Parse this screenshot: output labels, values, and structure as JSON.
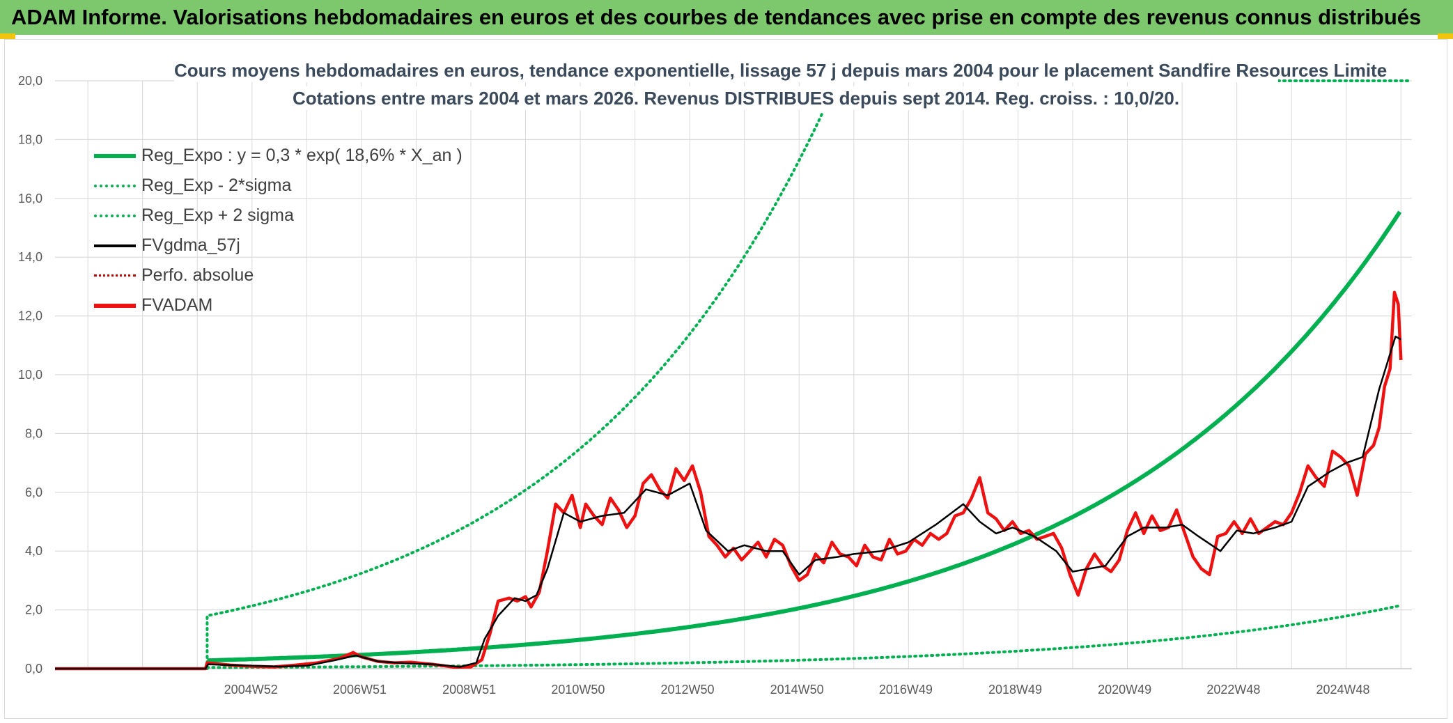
{
  "header": {
    "title": "ADAM Informe. Valorisations hebdomadaires en euros et des courbes de tendances avec prise en compte des revenus connus distribués"
  },
  "colors": {
    "header_bg": "#7dc86c",
    "reg_expo": "#00b050",
    "fvgdma": "#000000",
    "perfo": "#c00000",
    "fvadam": "#ee1111",
    "grid": "#d9d9d9"
  },
  "chart_data": {
    "type": "line",
    "title_line1": "Cours moyens hebdomadaires en euros, tendance exponentielle, lissage 57 j depuis mars 2004 pour le placement Sandfire Resources Limite",
    "title_line2": "Cotations entre mars 2004 et mars 2026. Revenus DISTRIBUES depuis sept 2014. Reg. croiss. : 10,0/20.",
    "xlabel": "",
    "ylabel": "",
    "ylim": [
      0,
      20
    ],
    "y_ticks": [
      "0,0",
      "2,0",
      "4,0",
      "6,0",
      "8,0",
      "10,0",
      "12,0",
      "14,0",
      "16,0",
      "18,0",
      "20,0"
    ],
    "x_range": [
      2001.4,
      2026.2
    ],
    "x_ticks": [
      {
        "label": "2004W52",
        "x": 2004.98
      },
      {
        "label": "2006W51",
        "x": 2006.97
      },
      {
        "label": "2008W51",
        "x": 2008.97
      },
      {
        "label": "2010W50",
        "x": 2010.96
      },
      {
        "label": "2012W50",
        "x": 2012.96
      },
      {
        "label": "2014W50",
        "x": 2014.96
      },
      {
        "label": "2016W49",
        "x": 2016.95
      },
      {
        "label": "2018W49",
        "x": 2018.95
      },
      {
        "label": "2020W49",
        "x": 2020.95
      },
      {
        "label": "2022W48",
        "x": 2022.94
      },
      {
        "label": "2024W48",
        "x": 2024.94
      }
    ],
    "grid": true,
    "legend_position": "top-left",
    "regression_start": 2004.18,
    "series": [
      {
        "name": "Reg_Expo : y = 0,3 * exp( 18,6% *  X_an )",
        "style": "solid-thick",
        "x": [
          2004.18,
          2006.0,
          2008.0,
          2010.0,
          2012.0,
          2014.0,
          2016.0,
          2018.0,
          2020.0,
          2022.0,
          2024.0,
          2026.0
        ],
        "values": [
          0.28,
          0.39,
          0.57,
          0.83,
          1.22,
          1.78,
          2.6,
          3.79,
          5.52,
          8.05,
          11.7,
          15.6
        ]
      },
      {
        "name": "Reg_Exp - 2*sigma",
        "style": "dotted",
        "x": [
          2004.18,
          2006.0,
          2008.0,
          2010.0,
          2012.0,
          2014.0,
          2016.0,
          2018.0,
          2020.0,
          2022.0,
          2024.0,
          2026.0
        ],
        "values": [
          0.04,
          0.05,
          0.08,
          0.11,
          0.17,
          0.24,
          0.36,
          0.52,
          0.76,
          1.11,
          1.62,
          2.15
        ]
      },
      {
        "name": "Reg_Exp + 2 sigma",
        "style": "dotted",
        "x": [
          2004.18,
          2006.0,
          2008.0,
          2010.0,
          2012.0,
          2013.5,
          2014.0,
          2015.0,
          2015.45
        ],
        "values": [
          1.8,
          2.45,
          3.6,
          5.3,
          7.85,
          11.2,
          13.4,
          16.9,
          19.0
        ]
      },
      {
        "name": "FVgdma_57j",
        "style": "solid",
        "x": [
          2001.4,
          2004.15,
          2004.2,
          2005.0,
          2005.5,
          2006.0,
          2006.5,
          2006.9,
          2007.3,
          2007.8,
          2008.3,
          2008.8,
          2009.1,
          2009.25,
          2009.5,
          2009.8,
          2010.0,
          2010.2,
          2010.4,
          2010.7,
          2011.0,
          2011.4,
          2011.8,
          2012.2,
          2012.6,
          2013.0,
          2013.3,
          2013.7,
          2014.0,
          2014.4,
          2014.7,
          2015.0,
          2015.3,
          2015.7,
          2016.0,
          2016.5,
          2017.0,
          2017.5,
          2018.0,
          2018.3,
          2018.6,
          2018.9,
          2019.3,
          2019.7,
          2020.0,
          2020.3,
          2020.6,
          2021.0,
          2021.3,
          2021.7,
          2022.0,
          2022.3,
          2022.7,
          2023.0,
          2023.3,
          2023.7,
          2024.0,
          2024.3,
          2024.7,
          2025.0,
          2025.3,
          2025.6,
          2025.9,
          2026.0
        ],
        "values": [
          0.0,
          0.0,
          0.15,
          0.1,
          0.07,
          0.1,
          0.28,
          0.45,
          0.25,
          0.18,
          0.15,
          0.06,
          0.2,
          1.0,
          1.8,
          2.4,
          2.3,
          2.5,
          3.4,
          5.3,
          5.0,
          5.2,
          5.3,
          6.1,
          5.9,
          6.3,
          4.7,
          4.0,
          4.2,
          4.0,
          4.0,
          3.2,
          3.7,
          3.8,
          3.9,
          4.0,
          4.3,
          4.9,
          5.6,
          5.0,
          4.6,
          4.8,
          4.5,
          4.0,
          3.3,
          3.4,
          3.5,
          4.5,
          4.8,
          4.8,
          4.9,
          4.5,
          4.0,
          4.7,
          4.6,
          4.8,
          5.0,
          6.2,
          6.7,
          7.0,
          7.2,
          9.5,
          11.3,
          11.2
        ]
      },
      {
        "name": "Perfo. absolue",
        "style": "dotted-red",
        "x": [],
        "values": []
      },
      {
        "name": "FVADAM",
        "style": "solid-thick-red",
        "x": [
          2001.4,
          2004.15,
          2004.18,
          2004.6,
          2005.0,
          2005.4,
          2005.8,
          2006.2,
          2006.6,
          2006.85,
          2007.0,
          2007.3,
          2007.6,
          2007.9,
          2008.3,
          2008.7,
          2009.0,
          2009.2,
          2009.35,
          2009.5,
          2009.7,
          2009.85,
          2010.0,
          2010.1,
          2010.25,
          2010.4,
          2010.55,
          2010.7,
          2010.85,
          2011.0,
          2011.1,
          2011.25,
          2011.4,
          2011.55,
          2011.7,
          2011.85,
          2012.0,
          2012.15,
          2012.3,
          2012.45,
          2012.6,
          2012.75,
          2012.9,
          2013.05,
          2013.2,
          2013.35,
          2013.5,
          2013.65,
          2013.8,
          2013.95,
          2014.1,
          2014.25,
          2014.4,
          2014.55,
          2014.7,
          2014.85,
          2015.0,
          2015.15,
          2015.3,
          2015.45,
          2015.6,
          2015.75,
          2015.9,
          2016.05,
          2016.2,
          2016.35,
          2016.5,
          2016.65,
          2016.8,
          2016.95,
          2017.1,
          2017.25,
          2017.4,
          2017.55,
          2017.7,
          2017.85,
          2018.0,
          2018.15,
          2018.3,
          2018.45,
          2018.6,
          2018.75,
          2018.9,
          2019.05,
          2019.2,
          2019.35,
          2019.5,
          2019.65,
          2019.8,
          2019.95,
          2020.1,
          2020.25,
          2020.4,
          2020.55,
          2020.7,
          2020.85,
          2021.0,
          2021.15,
          2021.3,
          2021.45,
          2021.6,
          2021.75,
          2021.9,
          2022.05,
          2022.2,
          2022.35,
          2022.5,
          2022.65,
          2022.8,
          2022.95,
          2023.1,
          2023.25,
          2023.4,
          2023.55,
          2023.7,
          2023.85,
          2024.0,
          2024.15,
          2024.3,
          2024.45,
          2024.6,
          2024.75,
          2024.9,
          2025.05,
          2025.2,
          2025.35,
          2025.5,
          2025.6,
          2025.7,
          2025.8,
          2025.88,
          2025.95,
          2026.0
        ],
        "values": [
          0.0,
          0.0,
          0.2,
          0.12,
          0.08,
          0.06,
          0.12,
          0.2,
          0.35,
          0.55,
          0.4,
          0.25,
          0.2,
          0.22,
          0.15,
          0.05,
          0.06,
          0.3,
          1.2,
          2.3,
          2.4,
          2.3,
          2.45,
          2.1,
          2.6,
          4.0,
          5.6,
          5.3,
          5.9,
          4.8,
          5.6,
          5.2,
          4.9,
          5.8,
          5.4,
          4.8,
          5.2,
          6.3,
          6.6,
          6.1,
          5.8,
          6.8,
          6.4,
          6.9,
          6.0,
          4.5,
          4.2,
          3.8,
          4.1,
          3.7,
          4.0,
          4.3,
          3.8,
          4.4,
          4.2,
          3.5,
          3.0,
          3.2,
          3.9,
          3.6,
          4.3,
          3.9,
          3.8,
          3.5,
          4.2,
          3.8,
          3.7,
          4.4,
          3.9,
          4.0,
          4.4,
          4.2,
          4.6,
          4.4,
          4.6,
          5.2,
          5.3,
          5.8,
          6.5,
          5.3,
          5.1,
          4.7,
          5.0,
          4.6,
          4.7,
          4.4,
          4.5,
          4.6,
          4.1,
          3.2,
          2.5,
          3.4,
          3.9,
          3.5,
          3.3,
          3.7,
          4.7,
          5.3,
          4.6,
          5.2,
          4.7,
          4.8,
          5.4,
          4.6,
          3.8,
          3.4,
          3.2,
          4.5,
          4.6,
          5.0,
          4.6,
          5.1,
          4.6,
          4.8,
          5.0,
          4.9,
          5.3,
          6.0,
          6.9,
          6.5,
          6.2,
          7.4,
          7.2,
          6.9,
          5.9,
          7.3,
          7.6,
          8.2,
          9.6,
          10.2,
          12.8,
          12.4,
          10.5
        ]
      }
    ]
  }
}
